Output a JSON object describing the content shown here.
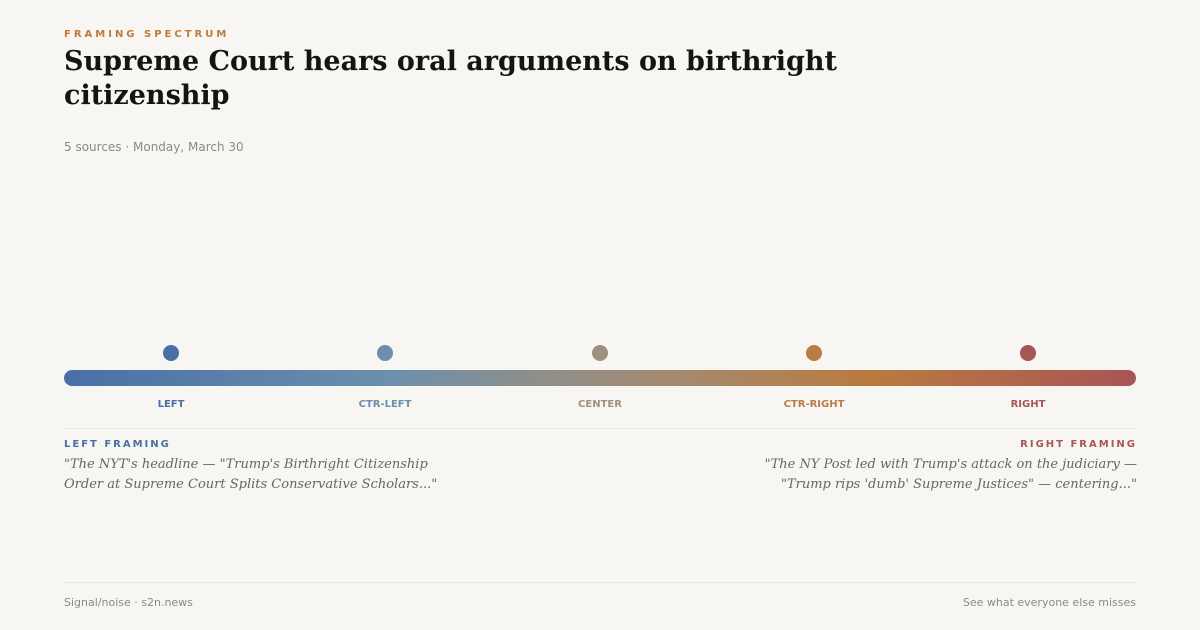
{
  "header": {
    "kicker": "FRAMING SPECTRUM",
    "title": "Supreme Court hears oral arguments on birthright citizenship",
    "meta": "5 sources · Monday, March 30"
  },
  "spectrum": {
    "positions": [
      {
        "label": "LEFT",
        "color": "#4a6fa5"
      },
      {
        "label": "CTR-LEFT",
        "color": "#6b8fad"
      },
      {
        "label": "CENTER",
        "color": "#a09080"
      },
      {
        "label": "CTR-RIGHT",
        "color": "#b87d45"
      },
      {
        "label": "RIGHT",
        "color": "#a85555"
      }
    ]
  },
  "framing": {
    "left": {
      "heading": "LEFT FRAMING",
      "quote": "\"The NYT's headline — \"Trump's Birthright Citizenship Order at Supreme Court Splits Conservative Scholars...\"",
      "color": "#4a6fa5"
    },
    "right": {
      "heading": "RIGHT FRAMING",
      "quote": "\"The NY Post led with Trump's attack on the judiciary — \"Trump rips 'dumb' Supreme Justices\" — centering...\"",
      "color": "#a85555"
    }
  },
  "footer": {
    "brand": "Signal/noise · s2n.news",
    "tagline": "See what everyone else misses"
  }
}
